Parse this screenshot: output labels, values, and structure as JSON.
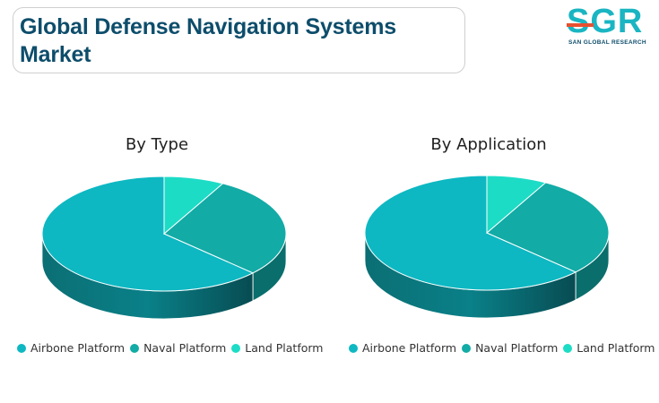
{
  "header": {
    "title": "Global Defense Navigation Systems Market"
  },
  "logo": {
    "letters": "SGR",
    "subtitle": "SAN GLOBAL RESEARCH",
    "primary_color": "#1ab5c2",
    "accent_color": "#e8502f"
  },
  "chart_data": [
    {
      "type": "pie",
      "title": "By Type",
      "categories": [
        "Airbone Platform",
        "Naval Platform",
        "Land Platform"
      ],
      "values": [
        63,
        29,
        8
      ],
      "colors": [
        "#0db8c2",
        "#12aba6",
        "#1ddcc6"
      ],
      "legend_position": "bottom"
    },
    {
      "type": "pie",
      "title": "By Application",
      "categories": [
        "Airbone Platform",
        "Naval Platform",
        "Land Platform"
      ],
      "values": [
        63,
        29,
        8
      ],
      "colors": [
        "#0db8c2",
        "#12aba6",
        "#1ddcc6"
      ],
      "legend_position": "bottom"
    }
  ]
}
